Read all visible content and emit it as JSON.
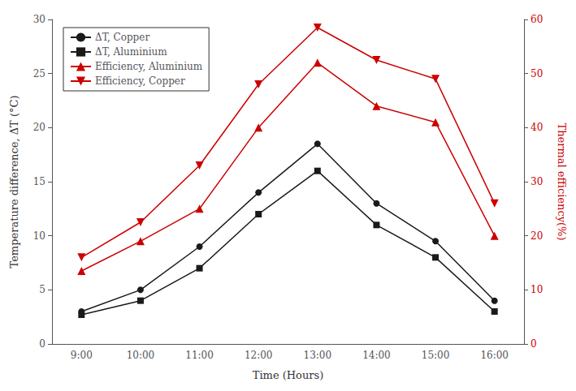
{
  "chart_data": {
    "type": "line",
    "x_label": "Time (Hours)",
    "y_label": "Temperature difference, ΔT (°C)",
    "y2_label": "Thermal efficiency(%)",
    "categories": [
      "9:00",
      "10:00",
      "11:00",
      "12:00",
      "13:00",
      "14:00",
      "15:00",
      "16:00"
    ],
    "series": [
      {
        "name": "ΔT, Copper",
        "color": "#1a1a1a",
        "marker": "circle",
        "values": [
          3.0,
          5.0,
          9.0,
          14.0,
          18.5,
          13.0,
          9.5,
          4.0
        ]
      },
      {
        "name": "ΔT, Aluminium",
        "color": "#1a1a1a",
        "marker": "square",
        "values": [
          2.7,
          4.0,
          7.0,
          12.0,
          16.0,
          11.0,
          8.0,
          3.0
        ]
      },
      {
        "name": "Efficiency, Aluminium",
        "color": "#cc0000",
        "marker": "triangle_up",
        "axis": "y2",
        "values": [
          13.5,
          19.0,
          25.0,
          40.0,
          52.0,
          44.0,
          41.0,
          20.0
        ]
      },
      {
        "name": "Efficiency, Copper",
        "color": "#cc0000",
        "marker": "triangle_down",
        "axis": "y2",
        "values": [
          16.0,
          22.5,
          33.0,
          48.0,
          58.5,
          52.5,
          49.0,
          26.0
        ]
      }
    ],
    "ylim": [
      0,
      30
    ],
    "yticks": [
      0,
      5,
      10,
      15,
      20,
      25,
      30
    ],
    "y2lim": [
      0,
      60
    ],
    "y2ticks": [
      0,
      10,
      20,
      30,
      40,
      50,
      60
    ],
    "grid": false,
    "legend": "upper left"
  }
}
